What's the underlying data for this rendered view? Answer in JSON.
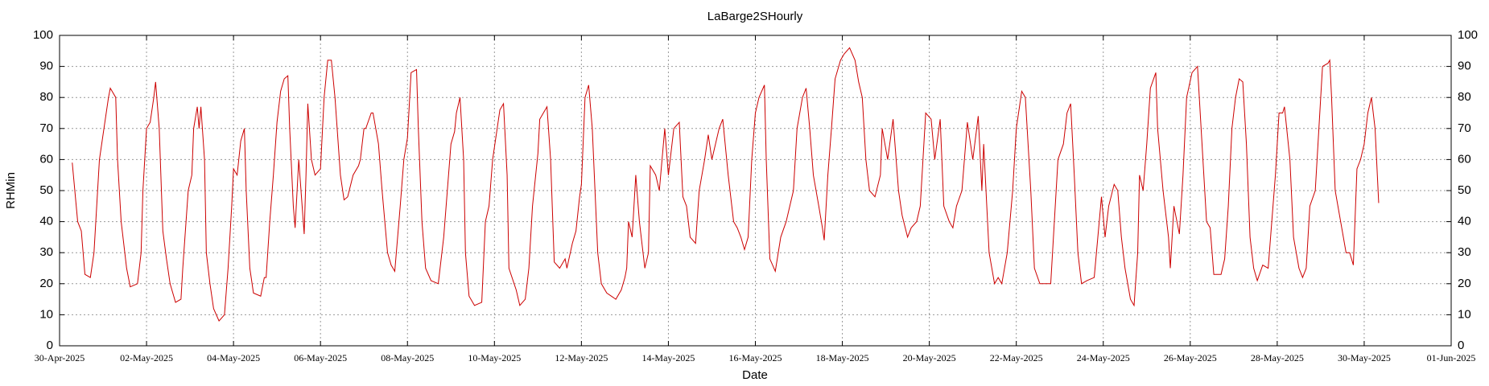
{
  "chart_data": {
    "type": "line",
    "title": "LaBarge2SHourly",
    "xlabel": "Date",
    "ylabel": "RHMin",
    "color": "#cc0000",
    "grid": true,
    "xlim": [
      "2025-04-30",
      "2025-06-01"
    ],
    "xticks": [
      {
        "value": "2025-04-30",
        "label": "30-Apr-2025"
      },
      {
        "value": "2025-05-02",
        "label": "02-May-2025"
      },
      {
        "value": "2025-05-04",
        "label": "04-May-2025"
      },
      {
        "value": "2025-05-06",
        "label": "06-May-2025"
      },
      {
        "value": "2025-05-08",
        "label": "08-May-2025"
      },
      {
        "value": "2025-05-10",
        "label": "10-May-2025"
      },
      {
        "value": "2025-05-12",
        "label": "12-May-2025"
      },
      {
        "value": "2025-05-14",
        "label": "14-May-2025"
      },
      {
        "value": "2025-05-16",
        "label": "16-May-2025"
      },
      {
        "value": "2025-05-18",
        "label": "18-May-2025"
      },
      {
        "value": "2025-05-20",
        "label": "20-May-2025"
      },
      {
        "value": "2025-05-22",
        "label": "22-May-2025"
      },
      {
        "value": "2025-05-24",
        "label": "24-May-2025"
      },
      {
        "value": "2025-05-26",
        "label": "26-May-2025"
      },
      {
        "value": "2025-05-28",
        "label": "28-May-2025"
      },
      {
        "value": "2025-05-30",
        "label": "30-May-2025"
      },
      {
        "value": "2025-06-01",
        "label": "01-Jun-2025"
      }
    ],
    "ylim": [
      0,
      100
    ],
    "yticks": [
      0,
      10,
      20,
      30,
      40,
      50,
      60,
      70,
      80,
      90,
      100
    ],
    "x": [
      "2025-04-30T07:00",
      "2025-04-30T10:00",
      "2025-04-30T12:00",
      "2025-04-30T14:00",
      "2025-04-30T17:00",
      "2025-04-30T19:00",
      "2025-04-30T22:00",
      "2025-05-01T01:00",
      "2025-05-01T03:00",
      "2025-05-01T04:00",
      "2025-05-01T07:00",
      "2025-05-01T08:00",
      "2025-05-01T10:00",
      "2025-05-01T13:00",
      "2025-05-01T15:00",
      "2025-05-01T19:00",
      "2025-05-01T21:00",
      "2025-05-01T22:00",
      "2025-05-02T00:00",
      "2025-05-02T02:00",
      "2025-05-02T04:00",
      "2025-05-02T05:00",
      "2025-05-02T07:00",
      "2025-05-02T09:00",
      "2025-05-02T11:00",
      "2025-05-02T13:00",
      "2025-05-02T16:00",
      "2025-05-02T19:00",
      "2025-05-02T20:00",
      "2025-05-02T23:00",
      "2025-05-03T01:00",
      "2025-05-03T02:00",
      "2025-05-03T04:00",
      "2025-05-03T05:00",
      "2025-05-03T06:00",
      "2025-05-03T08:00",
      "2025-05-03T09:00",
      "2025-05-03T11:00",
      "2025-05-03T13:00",
      "2025-05-03T16:00",
      "2025-05-03T19:00",
      "2025-05-03T21:00",
      "2025-05-03T23:00",
      "2025-05-04T00:00",
      "2025-05-04T02:00",
      "2025-05-04T04:00",
      "2025-05-04T06:00",
      "2025-05-04T07:00",
      "2025-05-04T09:00",
      "2025-05-04T11:00",
      "2025-05-04T15:00",
      "2025-05-04T17:00",
      "2025-05-04T18:00",
      "2025-05-04T20:00",
      "2025-05-04T22:00",
      "2025-05-05T00:00",
      "2025-05-05T02:00",
      "2025-05-05T04:00",
      "2025-05-05T06:00",
      "2025-05-05T07:00",
      "2025-05-05T09:00",
      "2025-05-05T10:00",
      "2025-05-05T12:00",
      "2025-05-05T15:00",
      "2025-05-05T16:00",
      "2025-05-05T17:00",
      "2025-05-05T19:00",
      "2025-05-05T21:00",
      "2025-05-06T00:00",
      "2025-05-06T02:00",
      "2025-05-06T04:00",
      "2025-05-06T06:00",
      "2025-05-06T08:00",
      "2025-05-06T11:00",
      "2025-05-06T13:00",
      "2025-05-06T15:00",
      "2025-05-06T18:00",
      "2025-05-06T21:00",
      "2025-05-06T22:00",
      "2025-05-07T00:00",
      "2025-05-07T01:00",
      "2025-05-07T04:00",
      "2025-05-07T05:00",
      "2025-05-07T08:00",
      "2025-05-07T10:00",
      "2025-05-07T13:00",
      "2025-05-07T15:00",
      "2025-05-07T17:00",
      "2025-05-07T20:00",
      "2025-05-07T22:00",
      "2025-05-08T00:00",
      "2025-05-08T02:00",
      "2025-05-08T05:00",
      "2025-05-08T06:00",
      "2025-05-08T08:00",
      "2025-05-08T10:00",
      "2025-05-08T13:00",
      "2025-05-08T17:00",
      "2025-05-08T20:00",
      "2025-05-08T22:00",
      "2025-05-09T00:00",
      "2025-05-09T02:00",
      "2025-05-09T03:00",
      "2025-05-09T05:00",
      "2025-05-09T07:00",
      "2025-05-09T08:00",
      "2025-05-09T10:00",
      "2025-05-09T13:00",
      "2025-05-09T17:00",
      "2025-05-09T19:00",
      "2025-05-09T21:00",
      "2025-05-09T23:00",
      "2025-05-10T03:00",
      "2025-05-10T05:00",
      "2025-05-10T07:00",
      "2025-05-10T08:00",
      "2025-05-10T12:00",
      "2025-05-10T14:00",
      "2025-05-10T17:00",
      "2025-05-10T19:00",
      "2025-05-10T21:00",
      "2025-05-11T00:00",
      "2025-05-11T01:00",
      "2025-05-11T03:00",
      "2025-05-11T05:00",
      "2025-05-11T07:00",
      "2025-05-11T09:00",
      "2025-05-11T12:00",
      "2025-05-11T15:00",
      "2025-05-11T16:00",
      "2025-05-11T19:00",
      "2025-05-11T21:00",
      "2025-05-11T23:00",
      "2025-05-12T00:00",
      "2025-05-12T02:00",
      "2025-05-12T04:00",
      "2025-05-12T06:00",
      "2025-05-12T09:00",
      "2025-05-12T11:00",
      "2025-05-12T14:00",
      "2025-05-12T19:00",
      "2025-05-12T22:00",
      "2025-05-13T00:00",
      "2025-05-13T01:00",
      "2025-05-13T02:00",
      "2025-05-13T04:00",
      "2025-05-13T06:00",
      "2025-05-13T08:00",
      "2025-05-13T11:00",
      "2025-05-13T13:00",
      "2025-05-13T14:00",
      "2025-05-13T17:00",
      "2025-05-13T19:00",
      "2025-05-13T22:00",
      "2025-05-14T00:00",
      "2025-05-14T03:00",
      "2025-05-14T06:00",
      "2025-05-14T08:00",
      "2025-05-14T10:00",
      "2025-05-14T12:00",
      "2025-05-14T15:00",
      "2025-05-14T17:00",
      "2025-05-14T20:00",
      "2025-05-14T22:00",
      "2025-05-15T00:00",
      "2025-05-15T04:00",
      "2025-05-15T06:00",
      "2025-05-15T09:00",
      "2025-05-15T12:00",
      "2025-05-15T14:00",
      "2025-05-15T16:00",
      "2025-05-15T18:00",
      "2025-05-15T20:00",
      "2025-05-15T22:00",
      "2025-05-16T00:00",
      "2025-05-16T02:00",
      "2025-05-16T05:00",
      "2025-05-16T06:00",
      "2025-05-16T08:00",
      "2025-05-16T11:00",
      "2025-05-16T14:00",
      "2025-05-16T17:00",
      "2025-05-16T21:00",
      "2025-05-16T23:00",
      "2025-05-17T02:00",
      "2025-05-17T04:00",
      "2025-05-17T06:00",
      "2025-05-17T08:00",
      "2025-05-17T11:00",
      "2025-05-17T13:00",
      "2025-05-17T14:00",
      "2025-05-17T16:00",
      "2025-05-17T18:00",
      "2025-05-17T20:00",
      "2025-05-17T23:00",
      "2025-05-18T01:00",
      "2025-05-18T04:00",
      "2025-05-18T07:00",
      "2025-05-18T09:00",
      "2025-05-18T11:00",
      "2025-05-18T13:00",
      "2025-05-18T15:00",
      "2025-05-18T18:00",
      "2025-05-18T21:00",
      "2025-05-18T22:00",
      "2025-05-19T01:00",
      "2025-05-19T04:00",
      "2025-05-19T07:00",
      "2025-05-19T09:00",
      "2025-05-19T12:00",
      "2025-05-19T14:00",
      "2025-05-19T17:00",
      "2025-05-19T19:00",
      "2025-05-19T22:00",
      "2025-05-20T01:00",
      "2025-05-20T03:00",
      "2025-05-20T06:00",
      "2025-05-20T08:00",
      "2025-05-20T11:00",
      "2025-05-20T13:00",
      "2025-05-20T15:00",
      "2025-05-20T18:00",
      "2025-05-20T21:00",
      "2025-05-21T00:00",
      "2025-05-21T03:00",
      "2025-05-21T05:00",
      "2025-05-21T06:00",
      "2025-05-21T09:00",
      "2025-05-21T12:00",
      "2025-05-21T14:00",
      "2025-05-21T16:00",
      "2025-05-21T19:00",
      "2025-05-21T22:00",
      "2025-05-22T00:00",
      "2025-05-22T03:00",
      "2025-05-22T05:00",
      "2025-05-22T08:00",
      "2025-05-22T10:00",
      "2025-05-22T13:00",
      "2025-05-22T16:00",
      "2025-05-22T19:00",
      "2025-05-22T21:00",
      "2025-05-22T23:00",
      "2025-05-23T02:00",
      "2025-05-23T04:00",
      "2025-05-23T06:00",
      "2025-05-23T08:00",
      "2025-05-23T10:00",
      "2025-05-23T12:00",
      "2025-05-23T15:00",
      "2025-05-23T19:00",
      "2025-05-23T21:00",
      "2025-05-23T23:00",
      "2025-05-24T01:00",
      "2025-05-24T03:00",
      "2025-05-24T06:00",
      "2025-05-24T08:00",
      "2025-05-24T10:00",
      "2025-05-24T12:00",
      "2025-05-24T15:00",
      "2025-05-24T17:00",
      "2025-05-24T19:00",
      "2025-05-24T20:00",
      "2025-05-24T22:00",
      "2025-05-25T00:00",
      "2025-05-25T02:00",
      "2025-05-25T05:00",
      "2025-05-25T06:00",
      "2025-05-25T09:00",
      "2025-05-25T12:00",
      "2025-05-25T13:00",
      "2025-05-25T15:00",
      "2025-05-25T18:00",
      "2025-05-25T20:00",
      "2025-05-25T22:00",
      "2025-05-26T01:00",
      "2025-05-26T04:00",
      "2025-05-26T06:00",
      "2025-05-26T09:00",
      "2025-05-26T11:00",
      "2025-05-26T13:00",
      "2025-05-26T17:00",
      "2025-05-26T19:00",
      "2025-05-26T21:00",
      "2025-05-26T23:00",
      "2025-05-27T01:00",
      "2025-05-27T03:00",
      "2025-05-27T05:00",
      "2025-05-27T07:00",
      "2025-05-27T09:00",
      "2025-05-27T11:00",
      "2025-05-27T13:00",
      "2025-05-27T16:00",
      "2025-05-27T19:00",
      "2025-05-27T21:00",
      "2025-05-27T23:00",
      "2025-05-28T01:00",
      "2025-05-28T03:00",
      "2025-05-28T04:00",
      "2025-05-28T07:00",
      "2025-05-28T09:00",
      "2025-05-28T12:00",
      "2025-05-28T14:00",
      "2025-05-28T16:00",
      "2025-05-28T18:00",
      "2025-05-28T21:00",
      "2025-05-28T23:00",
      "2025-05-29T01:00",
      "2025-05-29T04:00",
      "2025-05-29T05:00",
      "2025-05-29T06:00",
      "2025-05-29T08:00",
      "2025-05-29T11:00",
      "2025-05-29T14:00",
      "2025-05-29T16:00",
      "2025-05-29T18:00",
      "2025-05-29T20:00",
      "2025-05-29T22:00",
      "2025-05-30T00:00",
      "2025-05-30T02:00",
      "2025-05-30T04:00",
      "2025-05-30T06:00",
      "2025-05-30T08:00"
    ],
    "values": [
      59,
      40,
      37,
      23,
      22,
      30,
      60,
      72,
      80,
      83,
      80,
      60,
      40,
      25,
      19,
      20,
      30,
      50,
      70,
      72,
      80,
      85,
      70,
      37,
      28,
      20,
      14,
      15,
      25,
      50,
      55,
      70,
      77,
      70,
      77,
      60,
      30,
      20,
      12,
      8,
      10,
      25,
      45,
      57,
      55,
      66,
      70,
      50,
      25,
      17,
      16,
      22,
      22,
      40,
      55,
      72,
      82,
      86,
      87,
      70,
      45,
      38,
      60,
      36,
      55,
      78,
      60,
      55,
      57,
      80,
      92,
      92,
      80,
      55,
      47,
      48,
      55,
      58,
      60,
      70,
      70,
      75,
      75,
      65,
      50,
      30,
      26,
      24,
      45,
      60,
      67,
      88,
      89,
      70,
      40,
      25,
      21,
      20,
      35,
      50,
      65,
      69,
      75,
      80,
      60,
      30,
      16,
      13,
      14,
      40,
      45,
      60,
      76,
      78,
      55,
      25,
      18,
      13,
      15,
      25,
      45,
      62,
      73,
      75,
      77,
      60,
      27,
      25,
      28,
      25,
      33,
      37,
      48,
      52,
      80,
      84,
      70,
      30,
      20,
      17,
      15,
      18,
      22,
      25,
      40,
      35,
      55,
      40,
      25,
      30,
      58,
      55,
      50,
      70,
      55,
      70,
      72,
      48,
      45,
      35,
      33,
      50,
      60,
      68,
      60,
      70,
      73,
      55,
      40,
      38,
      35,
      31,
      35,
      60,
      75,
      80,
      84,
      60,
      28,
      24,
      35,
      40,
      50,
      70,
      80,
      83,
      70,
      55,
      45,
      38,
      34,
      55,
      70,
      86,
      92,
      94,
      96,
      92,
      85,
      80,
      60,
      50,
      48,
      55,
      70,
      60,
      73,
      50,
      42,
      35,
      38,
      40,
      45,
      75,
      73,
      60,
      73,
      45,
      40,
      38,
      45,
      50,
      72,
      60,
      74,
      50,
      65,
      30,
      20,
      22,
      20,
      30,
      50,
      70,
      82,
      80,
      50,
      25,
      20,
      20,
      20,
      40,
      60,
      65,
      75,
      78,
      55,
      30,
      20,
      21,
      22,
      35,
      48,
      35,
      45,
      52,
      50,
      35,
      25,
      15,
      13,
      30,
      55,
      50,
      65,
      83,
      88,
      70,
      50,
      35,
      25,
      45,
      36,
      55,
      80,
      88,
      90,
      70,
      40,
      38,
      23,
      23,
      28,
      45,
      70,
      80,
      86,
      85,
      65,
      35,
      25,
      21,
      26,
      25,
      40,
      55,
      75,
      75,
      77,
      60,
      35,
      25,
      22,
      25,
      45,
      50,
      70,
      90,
      91,
      92,
      80,
      50,
      40,
      30,
      30,
      26,
      57,
      60,
      65,
      75,
      80,
      70,
      46
    ]
  }
}
